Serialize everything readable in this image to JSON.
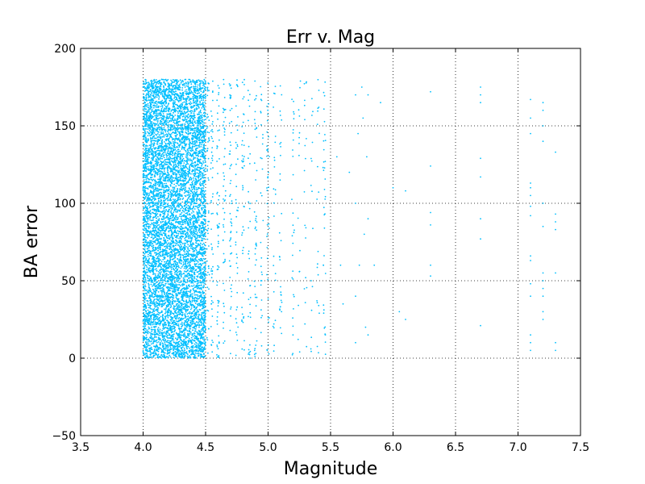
{
  "chart_data": {
    "type": "scatter",
    "title": "Err v. Mag",
    "xlabel": "Magnitude",
    "ylabel": "BA error",
    "xlim": [
      3.5,
      7.5
    ],
    "ylim": [
      -50,
      200
    ],
    "xticks": [
      "3.5",
      "4.0",
      "4.5",
      "5.0",
      "5.5",
      "6.0",
      "6.5",
      "7.0",
      "7.5"
    ],
    "yticks": [
      "−50",
      "0",
      "50",
      "100",
      "150",
      "200"
    ],
    "xtick_values": [
      3.5,
      4.0,
      4.5,
      5.0,
      5.5,
      6.0,
      6.5,
      7.0,
      7.5
    ],
    "ytick_values": [
      -50,
      0,
      50,
      100,
      150,
      200
    ],
    "grid": true,
    "marker_color": "#00bfff",
    "series": [
      {
        "dense_band": {
          "x_range": [
            4.0,
            4.5
          ],
          "y_range": [
            0,
            180
          ]
        },
        "columns": [
          {
            "x": 4.52,
            "n": 60
          },
          {
            "x": 4.55,
            "n": 55
          },
          {
            "x": 4.6,
            "n": 60
          },
          {
            "x": 4.65,
            "n": 50
          },
          {
            "x": 4.7,
            "n": 55
          },
          {
            "x": 4.75,
            "n": 40
          },
          {
            "x": 4.8,
            "n": 45
          },
          {
            "x": 4.85,
            "n": 35
          },
          {
            "x": 4.9,
            "n": 45
          },
          {
            "x": 4.95,
            "n": 30
          },
          {
            "x": 5.0,
            "n": 40
          },
          {
            "x": 5.05,
            "n": 25
          },
          {
            "x": 5.1,
            "n": 30
          },
          {
            "x": 5.2,
            "n": 30
          },
          {
            "x": 5.25,
            "n": 15
          },
          {
            "x": 5.3,
            "n": 20
          },
          {
            "x": 5.35,
            "n": 15
          },
          {
            "x": 5.4,
            "n": 20
          },
          {
            "x": 5.45,
            "n": 35
          }
        ],
        "points": [
          [
            5.55,
            130
          ],
          [
            5.58,
            60
          ],
          [
            5.6,
            35
          ],
          [
            5.65,
            120
          ],
          [
            5.7,
            170
          ],
          [
            5.7,
            100
          ],
          [
            5.7,
            40
          ],
          [
            5.7,
            10
          ],
          [
            5.72,
            145
          ],
          [
            5.73,
            60
          ],
          [
            5.75,
            175
          ],
          [
            5.76,
            155
          ],
          [
            5.77,
            80
          ],
          [
            5.78,
            20
          ],
          [
            5.79,
            130
          ],
          [
            5.8,
            170
          ],
          [
            5.8,
            90
          ],
          [
            5.8,
            15
          ],
          [
            5.85,
            60
          ],
          [
            5.9,
            165
          ],
          [
            6.0,
            110
          ],
          [
            6.05,
            30
          ],
          [
            6.1,
            108
          ],
          [
            6.1,
            25
          ],
          [
            6.3,
            172
          ],
          [
            6.3,
            124
          ],
          [
            6.3,
            94
          ],
          [
            6.3,
            86
          ],
          [
            6.3,
            60
          ],
          [
            6.3,
            53
          ],
          [
            6.7,
            175
          ],
          [
            6.7,
            170
          ],
          [
            6.7,
            165
          ],
          [
            6.7,
            129
          ],
          [
            6.7,
            117
          ],
          [
            6.7,
            90
          ],
          [
            6.7,
            77
          ],
          [
            6.7,
            21
          ],
          [
            7.1,
            167
          ],
          [
            7.1,
            155
          ],
          [
            7.1,
            145
          ],
          [
            7.1,
            113
          ],
          [
            7.1,
            110
          ],
          [
            7.1,
            105
          ],
          [
            7.1,
            98
          ],
          [
            7.1,
            92
          ],
          [
            7.1,
            66
          ],
          [
            7.1,
            63
          ],
          [
            7.1,
            48
          ],
          [
            7.1,
            40
          ],
          [
            7.1,
            15
          ],
          [
            7.1,
            10
          ],
          [
            7.1,
            5
          ],
          [
            7.2,
            165
          ],
          [
            7.2,
            160
          ],
          [
            7.2,
            150
          ],
          [
            7.2,
            140
          ],
          [
            7.2,
            100
          ],
          [
            7.2,
            85
          ],
          [
            7.2,
            55
          ],
          [
            7.2,
            50
          ],
          [
            7.2,
            45
          ],
          [
            7.2,
            40
          ],
          [
            7.2,
            30
          ],
          [
            7.2,
            25
          ],
          [
            7.3,
            133
          ],
          [
            7.3,
            93
          ],
          [
            7.3,
            88
          ],
          [
            7.3,
            83
          ],
          [
            7.3,
            55
          ],
          [
            7.3,
            10
          ],
          [
            7.3,
            5
          ]
        ]
      }
    ]
  }
}
